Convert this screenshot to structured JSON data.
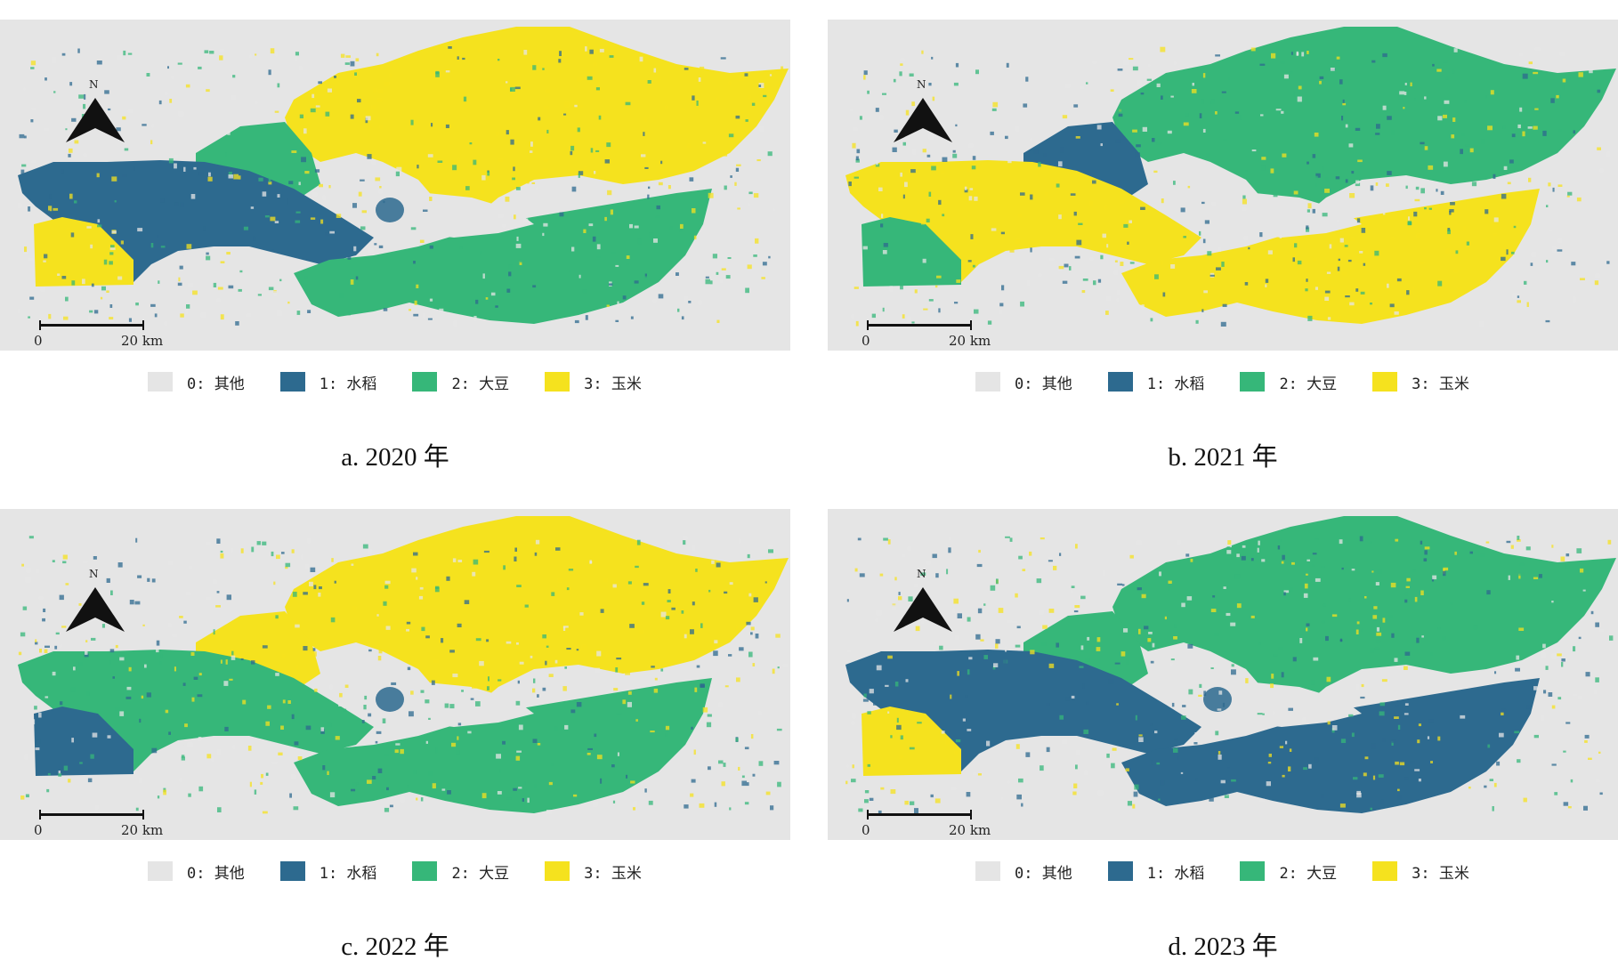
{
  "colors": {
    "other": "#e5e5e5",
    "rice": "#2d6a8f",
    "soybean": "#36b779",
    "corn": "#f5e21e",
    "background": "#e5e5e5"
  },
  "north_label": "N",
  "scale": {
    "start_label": "0",
    "end_label": "20 km"
  },
  "legend": [
    {
      "label": "0: 其他",
      "color": "#e5e5e5"
    },
    {
      "label": "1: 水稻",
      "color": "#2d6a8f"
    },
    {
      "label": "2: 大豆",
      "color": "#36b779"
    },
    {
      "label": "3: 玉米",
      "color": "#f5e21e"
    }
  ],
  "panels": [
    {
      "caption": "a. 2020 年",
      "regions": {
        "north": "corn",
        "west": "rice",
        "southwest": "corn",
        "south": "soybean",
        "center": "other",
        "mid": "soybean"
      }
    },
    {
      "caption": "b. 2021 年",
      "regions": {
        "north": "soybean",
        "west": "corn",
        "southwest": "soybean",
        "south": "corn",
        "center": "other",
        "mid": "rice"
      }
    },
    {
      "caption": "c. 2022 年",
      "regions": {
        "north": "corn",
        "west": "soybean",
        "southwest": "rice",
        "south": "soybean",
        "center": "other",
        "mid": "corn"
      }
    },
    {
      "caption": "d. 2023 年",
      "regions": {
        "north": "soybean",
        "west": "rice",
        "southwest": "corn",
        "south": "rice",
        "center": "other",
        "mid": "soybean"
      }
    }
  ]
}
